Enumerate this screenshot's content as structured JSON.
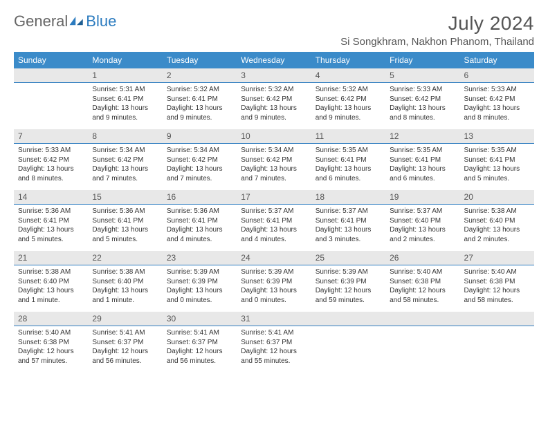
{
  "brand": {
    "part1": "General",
    "part2": "Blue"
  },
  "title": "July 2024",
  "location": "Si Songkhram, Nakhon Phanom, Thailand",
  "colors": {
    "header_bg": "#3b8bc9",
    "header_fg": "#ffffff",
    "daynum_bg": "#e8e8e8",
    "daynum_border": "#2b7bbf",
    "text": "#333333",
    "brand_blue": "#2b7bbf",
    "brand_gray": "#666666"
  },
  "typography": {
    "title_fontsize": 28,
    "location_fontsize": 15,
    "header_fontsize": 12,
    "daynum_fontsize": 12,
    "body_fontsize": 10
  },
  "weekdays": [
    "Sunday",
    "Monday",
    "Tuesday",
    "Wednesday",
    "Thursday",
    "Friday",
    "Saturday"
  ],
  "weeks": [
    {
      "nums": [
        "",
        "1",
        "2",
        "3",
        "4",
        "5",
        "6"
      ],
      "data": [
        null,
        {
          "sunrise": "Sunrise: 5:31 AM",
          "sunset": "Sunset: 6:41 PM",
          "daylight": "Daylight: 13 hours and 9 minutes."
        },
        {
          "sunrise": "Sunrise: 5:32 AM",
          "sunset": "Sunset: 6:41 PM",
          "daylight": "Daylight: 13 hours and 9 minutes."
        },
        {
          "sunrise": "Sunrise: 5:32 AM",
          "sunset": "Sunset: 6:42 PM",
          "daylight": "Daylight: 13 hours and 9 minutes."
        },
        {
          "sunrise": "Sunrise: 5:32 AM",
          "sunset": "Sunset: 6:42 PM",
          "daylight": "Daylight: 13 hours and 9 minutes."
        },
        {
          "sunrise": "Sunrise: 5:33 AM",
          "sunset": "Sunset: 6:42 PM",
          "daylight": "Daylight: 13 hours and 8 minutes."
        },
        {
          "sunrise": "Sunrise: 5:33 AM",
          "sunset": "Sunset: 6:42 PM",
          "daylight": "Daylight: 13 hours and 8 minutes."
        }
      ]
    },
    {
      "nums": [
        "7",
        "8",
        "9",
        "10",
        "11",
        "12",
        "13"
      ],
      "data": [
        {
          "sunrise": "Sunrise: 5:33 AM",
          "sunset": "Sunset: 6:42 PM",
          "daylight": "Daylight: 13 hours and 8 minutes."
        },
        {
          "sunrise": "Sunrise: 5:34 AM",
          "sunset": "Sunset: 6:42 PM",
          "daylight": "Daylight: 13 hours and 7 minutes."
        },
        {
          "sunrise": "Sunrise: 5:34 AM",
          "sunset": "Sunset: 6:42 PM",
          "daylight": "Daylight: 13 hours and 7 minutes."
        },
        {
          "sunrise": "Sunrise: 5:34 AM",
          "sunset": "Sunset: 6:42 PM",
          "daylight": "Daylight: 13 hours and 7 minutes."
        },
        {
          "sunrise": "Sunrise: 5:35 AM",
          "sunset": "Sunset: 6:41 PM",
          "daylight": "Daylight: 13 hours and 6 minutes."
        },
        {
          "sunrise": "Sunrise: 5:35 AM",
          "sunset": "Sunset: 6:41 PM",
          "daylight": "Daylight: 13 hours and 6 minutes."
        },
        {
          "sunrise": "Sunrise: 5:35 AM",
          "sunset": "Sunset: 6:41 PM",
          "daylight": "Daylight: 13 hours and 5 minutes."
        }
      ]
    },
    {
      "nums": [
        "14",
        "15",
        "16",
        "17",
        "18",
        "19",
        "20"
      ],
      "data": [
        {
          "sunrise": "Sunrise: 5:36 AM",
          "sunset": "Sunset: 6:41 PM",
          "daylight": "Daylight: 13 hours and 5 minutes."
        },
        {
          "sunrise": "Sunrise: 5:36 AM",
          "sunset": "Sunset: 6:41 PM",
          "daylight": "Daylight: 13 hours and 5 minutes."
        },
        {
          "sunrise": "Sunrise: 5:36 AM",
          "sunset": "Sunset: 6:41 PM",
          "daylight": "Daylight: 13 hours and 4 minutes."
        },
        {
          "sunrise": "Sunrise: 5:37 AM",
          "sunset": "Sunset: 6:41 PM",
          "daylight": "Daylight: 13 hours and 4 minutes."
        },
        {
          "sunrise": "Sunrise: 5:37 AM",
          "sunset": "Sunset: 6:41 PM",
          "daylight": "Daylight: 13 hours and 3 minutes."
        },
        {
          "sunrise": "Sunrise: 5:37 AM",
          "sunset": "Sunset: 6:40 PM",
          "daylight": "Daylight: 13 hours and 2 minutes."
        },
        {
          "sunrise": "Sunrise: 5:38 AM",
          "sunset": "Sunset: 6:40 PM",
          "daylight": "Daylight: 13 hours and 2 minutes."
        }
      ]
    },
    {
      "nums": [
        "21",
        "22",
        "23",
        "24",
        "25",
        "26",
        "27"
      ],
      "data": [
        {
          "sunrise": "Sunrise: 5:38 AM",
          "sunset": "Sunset: 6:40 PM",
          "daylight": "Daylight: 13 hours and 1 minute."
        },
        {
          "sunrise": "Sunrise: 5:38 AM",
          "sunset": "Sunset: 6:40 PM",
          "daylight": "Daylight: 13 hours and 1 minute."
        },
        {
          "sunrise": "Sunrise: 5:39 AM",
          "sunset": "Sunset: 6:39 PM",
          "daylight": "Daylight: 13 hours and 0 minutes."
        },
        {
          "sunrise": "Sunrise: 5:39 AM",
          "sunset": "Sunset: 6:39 PM",
          "daylight": "Daylight: 13 hours and 0 minutes."
        },
        {
          "sunrise": "Sunrise: 5:39 AM",
          "sunset": "Sunset: 6:39 PM",
          "daylight": "Daylight: 12 hours and 59 minutes."
        },
        {
          "sunrise": "Sunrise: 5:40 AM",
          "sunset": "Sunset: 6:38 PM",
          "daylight": "Daylight: 12 hours and 58 minutes."
        },
        {
          "sunrise": "Sunrise: 5:40 AM",
          "sunset": "Sunset: 6:38 PM",
          "daylight": "Daylight: 12 hours and 58 minutes."
        }
      ]
    },
    {
      "nums": [
        "28",
        "29",
        "30",
        "31",
        "",
        "",
        ""
      ],
      "data": [
        {
          "sunrise": "Sunrise: 5:40 AM",
          "sunset": "Sunset: 6:38 PM",
          "daylight": "Daylight: 12 hours and 57 minutes."
        },
        {
          "sunrise": "Sunrise: 5:41 AM",
          "sunset": "Sunset: 6:37 PM",
          "daylight": "Daylight: 12 hours and 56 minutes."
        },
        {
          "sunrise": "Sunrise: 5:41 AM",
          "sunset": "Sunset: 6:37 PM",
          "daylight": "Daylight: 12 hours and 56 minutes."
        },
        {
          "sunrise": "Sunrise: 5:41 AM",
          "sunset": "Sunset: 6:37 PM",
          "daylight": "Daylight: 12 hours and 55 minutes."
        },
        null,
        null,
        null
      ]
    }
  ]
}
